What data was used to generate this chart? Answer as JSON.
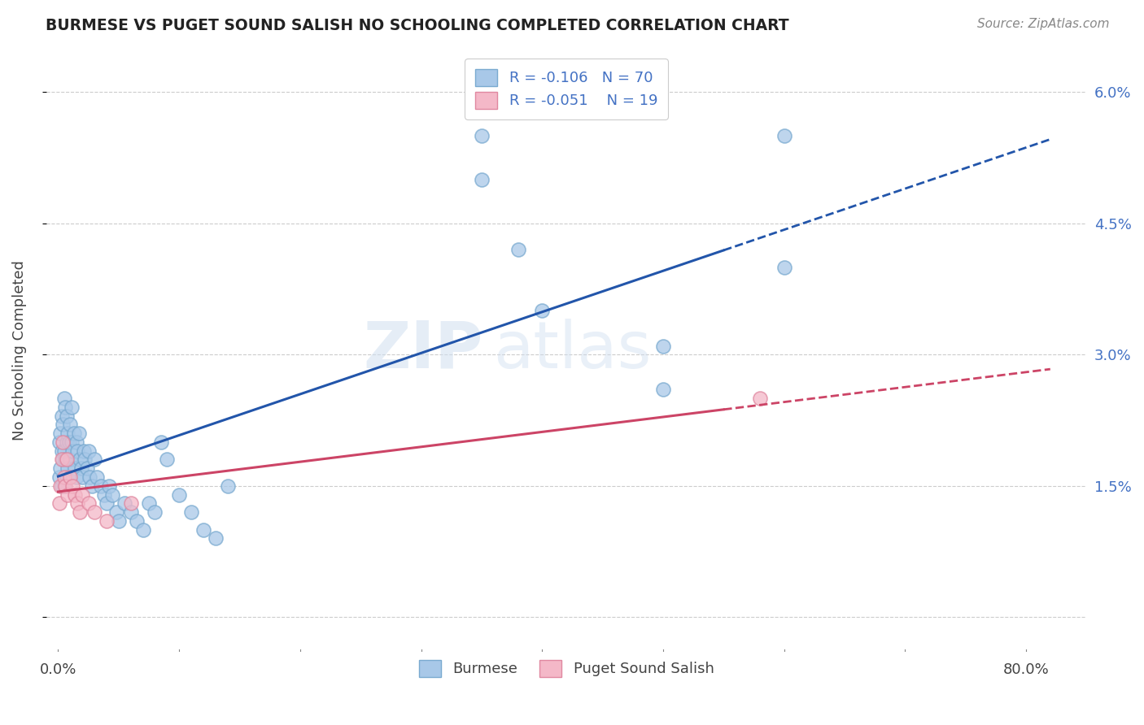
{
  "title": "BURMESE VS PUGET SOUND SALISH NO SCHOOLING COMPLETED CORRELATION CHART",
  "source": "Source: ZipAtlas.com",
  "ylabel": "No Schooling Completed",
  "legend_burmese": "Burmese",
  "legend_salish": "Puget Sound Salish",
  "R_burmese": -0.106,
  "N_burmese": 70,
  "R_salish": -0.051,
  "N_salish": 19,
  "burmese_color": "#A8C8E8",
  "burmese_edge_color": "#7AAAD0",
  "salish_color": "#F4B8C8",
  "salish_edge_color": "#E088A0",
  "burmese_line_color": "#2255AA",
  "salish_line_color": "#CC4466",
  "watermark_zip": "ZIP",
  "watermark_atlas": "atlas",
  "background_color": "#FFFFFF",
  "burmese_x": [
    0.001,
    0.001,
    0.002,
    0.002,
    0.003,
    0.003,
    0.003,
    0.004,
    0.004,
    0.005,
    0.005,
    0.005,
    0.006,
    0.006,
    0.007,
    0.007,
    0.007,
    0.008,
    0.008,
    0.009,
    0.01,
    0.01,
    0.011,
    0.011,
    0.012,
    0.013,
    0.014,
    0.015,
    0.015,
    0.016,
    0.017,
    0.018,
    0.019,
    0.02,
    0.021,
    0.022,
    0.024,
    0.025,
    0.026,
    0.028,
    0.03,
    0.032,
    0.035,
    0.038,
    0.04,
    0.042,
    0.045,
    0.048,
    0.05,
    0.055,
    0.06,
    0.065,
    0.07,
    0.075,
    0.08,
    0.085,
    0.09,
    0.1,
    0.11,
    0.12,
    0.13,
    0.14,
    0.35,
    0.35,
    0.38,
    0.4,
    0.5,
    0.5,
    0.6,
    0.6
  ],
  "burmese_y": [
    0.02,
    0.016,
    0.021,
    0.017,
    0.023,
    0.019,
    0.015,
    0.022,
    0.018,
    0.025,
    0.019,
    0.015,
    0.024,
    0.018,
    0.023,
    0.02,
    0.016,
    0.021,
    0.017,
    0.02,
    0.022,
    0.018,
    0.024,
    0.02,
    0.019,
    0.021,
    0.017,
    0.02,
    0.016,
    0.019,
    0.021,
    0.018,
    0.017,
    0.016,
    0.019,
    0.018,
    0.017,
    0.019,
    0.016,
    0.015,
    0.018,
    0.016,
    0.015,
    0.014,
    0.013,
    0.015,
    0.014,
    0.012,
    0.011,
    0.013,
    0.012,
    0.011,
    0.01,
    0.013,
    0.012,
    0.02,
    0.018,
    0.014,
    0.012,
    0.01,
    0.009,
    0.015,
    0.055,
    0.05,
    0.042,
    0.035,
    0.031,
    0.026,
    0.055,
    0.04
  ],
  "salish_x": [
    0.001,
    0.002,
    0.003,
    0.004,
    0.005,
    0.006,
    0.007,
    0.008,
    0.01,
    0.012,
    0.014,
    0.016,
    0.018,
    0.02,
    0.025,
    0.03,
    0.04,
    0.06,
    0.58
  ],
  "salish_y": [
    0.013,
    0.015,
    0.018,
    0.02,
    0.016,
    0.015,
    0.018,
    0.014,
    0.016,
    0.015,
    0.014,
    0.013,
    0.012,
    0.014,
    0.013,
    0.012,
    0.011,
    0.013,
    0.025
  ],
  "xlim": [
    -0.01,
    0.85
  ],
  "ylim": [
    -0.004,
    0.065
  ],
  "xticks": [
    0.0,
    0.8
  ],
  "xtick_labels": [
    "0.0%",
    "80.0%"
  ],
  "yticks_right": [
    0.0,
    0.015,
    0.03,
    0.045,
    0.06
  ],
  "ytick_labels_right": [
    "",
    "1.5%",
    "3.0%",
    "4.5%",
    "6.0%"
  ]
}
